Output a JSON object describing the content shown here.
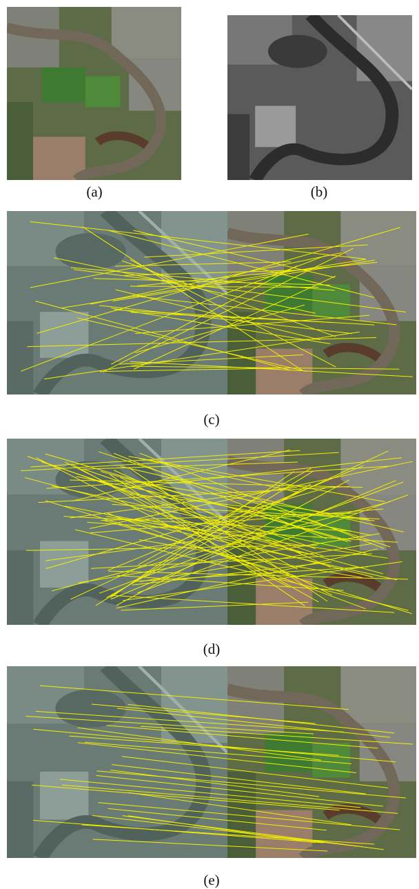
{
  "figure": {
    "labels": [
      "(a)",
      "(b)",
      "(c)",
      "(d)",
      "(e)"
    ]
  }
}
